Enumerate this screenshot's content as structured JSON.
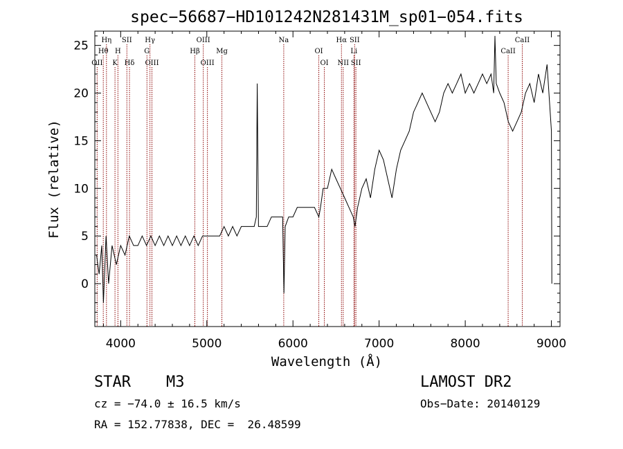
{
  "chart_data": {
    "type": "line",
    "title": "spec−56687−HD101242N281431M_sp01−054.fits",
    "xlabel": "Wavelength (Å)",
    "ylabel": "Flux (relative)",
    "xlim": [
      3700,
      9100
    ],
    "ylim": [
      -4.5,
      26.5
    ],
    "xticks": [
      4000,
      5000,
      6000,
      7000,
      8000,
      9000
    ],
    "yticks": [
      0,
      5,
      10,
      15,
      20,
      25
    ],
    "grid": false,
    "line_color": "#000000",
    "marker_color": "#8b0000",
    "series": [
      {
        "x": [
          3720,
          3750,
          3780,
          3800,
          3830,
          3860,
          3900,
          3950,
          4000,
          4050,
          4100,
          4150,
          4200,
          4250,
          4300,
          4350,
          4400,
          4450,
          4500,
          4550,
          4600,
          4650,
          4700,
          4750,
          4800,
          4850,
          4900,
          4950,
          5000,
          5050,
          5100,
          5150,
          5200,
          5250,
          5300,
          5350,
          5400,
          5450,
          5500,
          5550,
          5575,
          5585,
          5600,
          5650,
          5700,
          5750,
          5800,
          5850,
          5880,
          5895,
          5910,
          5950,
          6000,
          6050,
          6100,
          6150,
          6200,
          6250,
          6300,
          6320,
          6350,
          6400,
          6450,
          6500,
          6550,
          6600,
          6650,
          6700,
          6720,
          6750,
          6800,
          6850,
          6900,
          6950,
          7000,
          7050,
          7100,
          7150,
          7200,
          7250,
          7300,
          7350,
          7400,
          7450,
          7500,
          7550,
          7600,
          7650,
          7700,
          7750,
          7800,
          7850,
          7900,
          7950,
          8000,
          8050,
          8100,
          8150,
          8200,
          8250,
          8300,
          8330,
          8345,
          8360,
          8400,
          8450,
          8500,
          8550,
          8600,
          8650,
          8700,
          8750,
          8800,
          8850,
          8900,
          8950,
          9000,
          9005
        ],
        "y": [
          3,
          1,
          4,
          -2,
          5,
          0,
          4,
          2,
          4,
          3,
          5,
          4,
          4,
          5,
          4,
          5,
          4,
          5,
          4,
          5,
          4,
          5,
          4,
          5,
          4,
          5,
          4,
          5,
          5,
          5,
          5,
          5,
          6,
          5,
          6,
          5,
          6,
          6,
          6,
          6,
          7,
          21,
          6,
          6,
          6,
          7,
          7,
          7,
          7,
          -1,
          6,
          7,
          7,
          8,
          8,
          8,
          8,
          8,
          7,
          8,
          10,
          10,
          12,
          11,
          10,
          9,
          8,
          7,
          6,
          8,
          10,
          11,
          9,
          12,
          14,
          13,
          11,
          9,
          12,
          14,
          15,
          16,
          18,
          19,
          20,
          19,
          18,
          17,
          18,
          20,
          21,
          20,
          21,
          22,
          20,
          21,
          20,
          21,
          22,
          21,
          22,
          20,
          26,
          21,
          20,
          19,
          17,
          16,
          17,
          18,
          20,
          21,
          19,
          22,
          20,
          23,
          16,
          0
        ]
      }
    ],
    "line_markers": [
      {
        "label": "Hη",
        "x": 3835,
        "row": 1
      },
      {
        "label": "Hθ",
        "x": 3798,
        "row": 2
      },
      {
        "label": "OII",
        "x": 3727,
        "row": 3
      },
      {
        "label": "SII",
        "x": 4072,
        "row": 1
      },
      {
        "label": "H",
        "x": 3968,
        "row": 2
      },
      {
        "label": "K",
        "x": 3934,
        "row": 3
      },
      {
        "label": "Hδ",
        "x": 4102,
        "row": 3
      },
      {
        "label": "Hγ",
        "x": 4340,
        "row": 1
      },
      {
        "label": "G",
        "x": 4305,
        "row": 2
      },
      {
        "label": "OIII",
        "x": 4363,
        "row": 3
      },
      {
        "label": "OIII",
        "x": 4959,
        "row": 1
      },
      {
        "label": "Hβ",
        "x": 4861,
        "row": 2
      },
      {
        "label": "OIII",
        "x": 5007,
        "row": 3
      },
      {
        "label": "Mg",
        "x": 5175,
        "row": 2
      },
      {
        "label": "Na",
        "x": 5893,
        "row": 1
      },
      {
        "label": "OI",
        "x": 6300,
        "row": 2
      },
      {
        "label": "OI",
        "x": 6364,
        "row": 3
      },
      {
        "label": "Hα",
        "x": 6563,
        "row": 1
      },
      {
        "label": "SII",
        "x": 6716,
        "row": 1
      },
      {
        "label": "Li",
        "x": 6708,
        "row": 2
      },
      {
        "label": "NII",
        "x": 6583,
        "row": 3
      },
      {
        "label": "SII",
        "x": 6731,
        "row": 3
      },
      {
        "label": "CaII",
        "x": 8662,
        "row": 1
      },
      {
        "label": "CaII",
        "x": 8498,
        "row": 2
      }
    ]
  },
  "info": {
    "object_class": "STAR",
    "subclass": "M3",
    "cz": "cz = −74.0 ± 16.5 km/s",
    "coords": "RA = 152.77838, DEC =  26.48599",
    "survey": "LAMOST DR2",
    "obs_date": "Obs−Date: 20140129"
  }
}
